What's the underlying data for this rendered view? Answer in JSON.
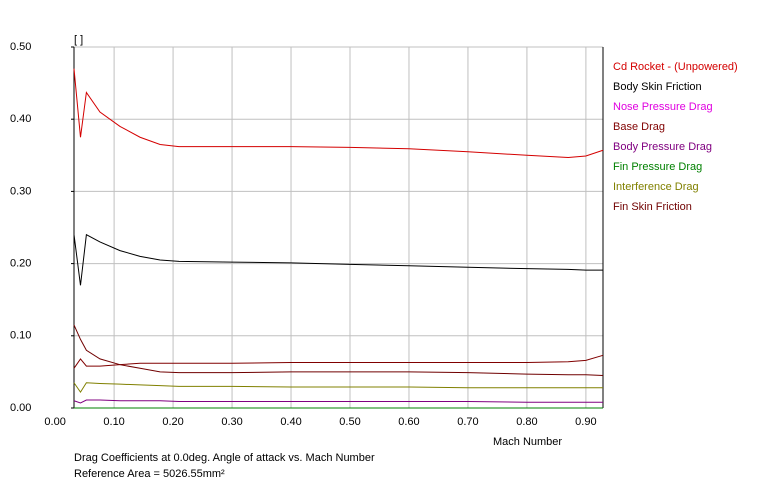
{
  "chart_data": {
    "type": "line",
    "y_unit_label": "[ ]",
    "x_label": "Mach Number",
    "footer": [
      "Drag Coefficients at 0.0deg. Angle of attack vs. Mach Number",
      "Reference Area =  5026.55mm²"
    ],
    "x": [
      0.032,
      0.043,
      0.053,
      0.076,
      0.11,
      0.144,
      0.178,
      0.21,
      0.3,
      0.4,
      0.5,
      0.6,
      0.7,
      0.8,
      0.87,
      0.9,
      0.929
    ],
    "series": [
      {
        "name": "Cd Rocket - (Unpowered)",
        "color": "#d40000",
        "values": [
          0.47,
          0.375,
          0.437,
          0.41,
          0.39,
          0.375,
          0.365,
          0.362,
          0.362,
          0.362,
          0.361,
          0.359,
          0.355,
          0.35,
          0.347,
          0.349,
          0.357
        ]
      },
      {
        "name": "Body Skin Friction",
        "color": "#000000",
        "values": [
          0.24,
          0.17,
          0.24,
          0.23,
          0.218,
          0.21,
          0.205,
          0.203,
          0.202,
          0.201,
          0.199,
          0.197,
          0.195,
          0.193,
          0.192,
          0.191,
          0.191
        ]
      },
      {
        "name": "Nose Pressure Drag",
        "color": "#e000e0",
        "values": [
          0,
          0,
          0,
          0,
          0,
          0,
          0,
          0,
          0,
          0,
          0,
          0,
          0,
          0,
          0,
          0,
          0
        ]
      },
      {
        "name": "Base Drag",
        "color": "#800000",
        "values": [
          0.055,
          0.068,
          0.058,
          0.058,
          0.06,
          0.062,
          0.062,
          0.062,
          0.062,
          0.063,
          0.063,
          0.063,
          0.063,
          0.063,
          0.064,
          0.066,
          0.073
        ]
      },
      {
        "name": "Body Pressure Drag",
        "color": "#800080",
        "values": [
          0.01,
          0.007,
          0.011,
          0.011,
          0.01,
          0.01,
          0.01,
          0.009,
          0.009,
          0.009,
          0.009,
          0.009,
          0.009,
          0.008,
          0.008,
          0.008,
          0.008
        ]
      },
      {
        "name": "Fin Pressure Drag",
        "color": "#008000",
        "values": [
          0,
          0,
          0,
          0,
          0,
          0,
          0,
          0,
          0,
          0,
          0,
          0,
          0,
          0,
          0,
          0,
          0
        ]
      },
      {
        "name": "Interference Drag",
        "color": "#808000",
        "values": [
          0.035,
          0.022,
          0.035,
          0.034,
          0.033,
          0.032,
          0.031,
          0.03,
          0.03,
          0.029,
          0.029,
          0.029,
          0.028,
          0.028,
          0.028,
          0.028,
          0.028
        ]
      },
      {
        "name": "Fin Skin Friction",
        "color": "#700000",
        "values": [
          0.115,
          0.095,
          0.08,
          0.068,
          0.06,
          0.055,
          0.05,
          0.049,
          0.049,
          0.05,
          0.05,
          0.05,
          0.049,
          0.047,
          0.046,
          0.046,
          0.045
        ]
      }
    ],
    "xlim": [
      0.032,
      0.929
    ],
    "xticks": [
      {
        "value": 0,
        "label": "0.00"
      },
      {
        "value": 0.1,
        "label": "0.10"
      },
      {
        "value": 0.2,
        "label": "0.20"
      },
      {
        "value": 0.3,
        "label": "0.30"
      },
      {
        "value": 0.4,
        "label": "0.40"
      },
      {
        "value": 0.5,
        "label": "0.50"
      },
      {
        "value": 0.6,
        "label": "0.60"
      },
      {
        "value": 0.7,
        "label": "0.70"
      },
      {
        "value": 0.8,
        "label": "0.80"
      },
      {
        "value": 0.9,
        "label": "0.90"
      }
    ],
    "ylim": [
      0,
      0.5
    ],
    "yticks": [
      {
        "value": 0,
        "label": "0.00"
      },
      {
        "value": 0.1,
        "label": "0.10"
      },
      {
        "value": 0.2,
        "label": "0.20"
      },
      {
        "value": 0.3,
        "label": "0.30"
      },
      {
        "value": 0.4,
        "label": "0.40"
      },
      {
        "value": 0.5,
        "label": "0.50"
      }
    ],
    "grid": true
  }
}
